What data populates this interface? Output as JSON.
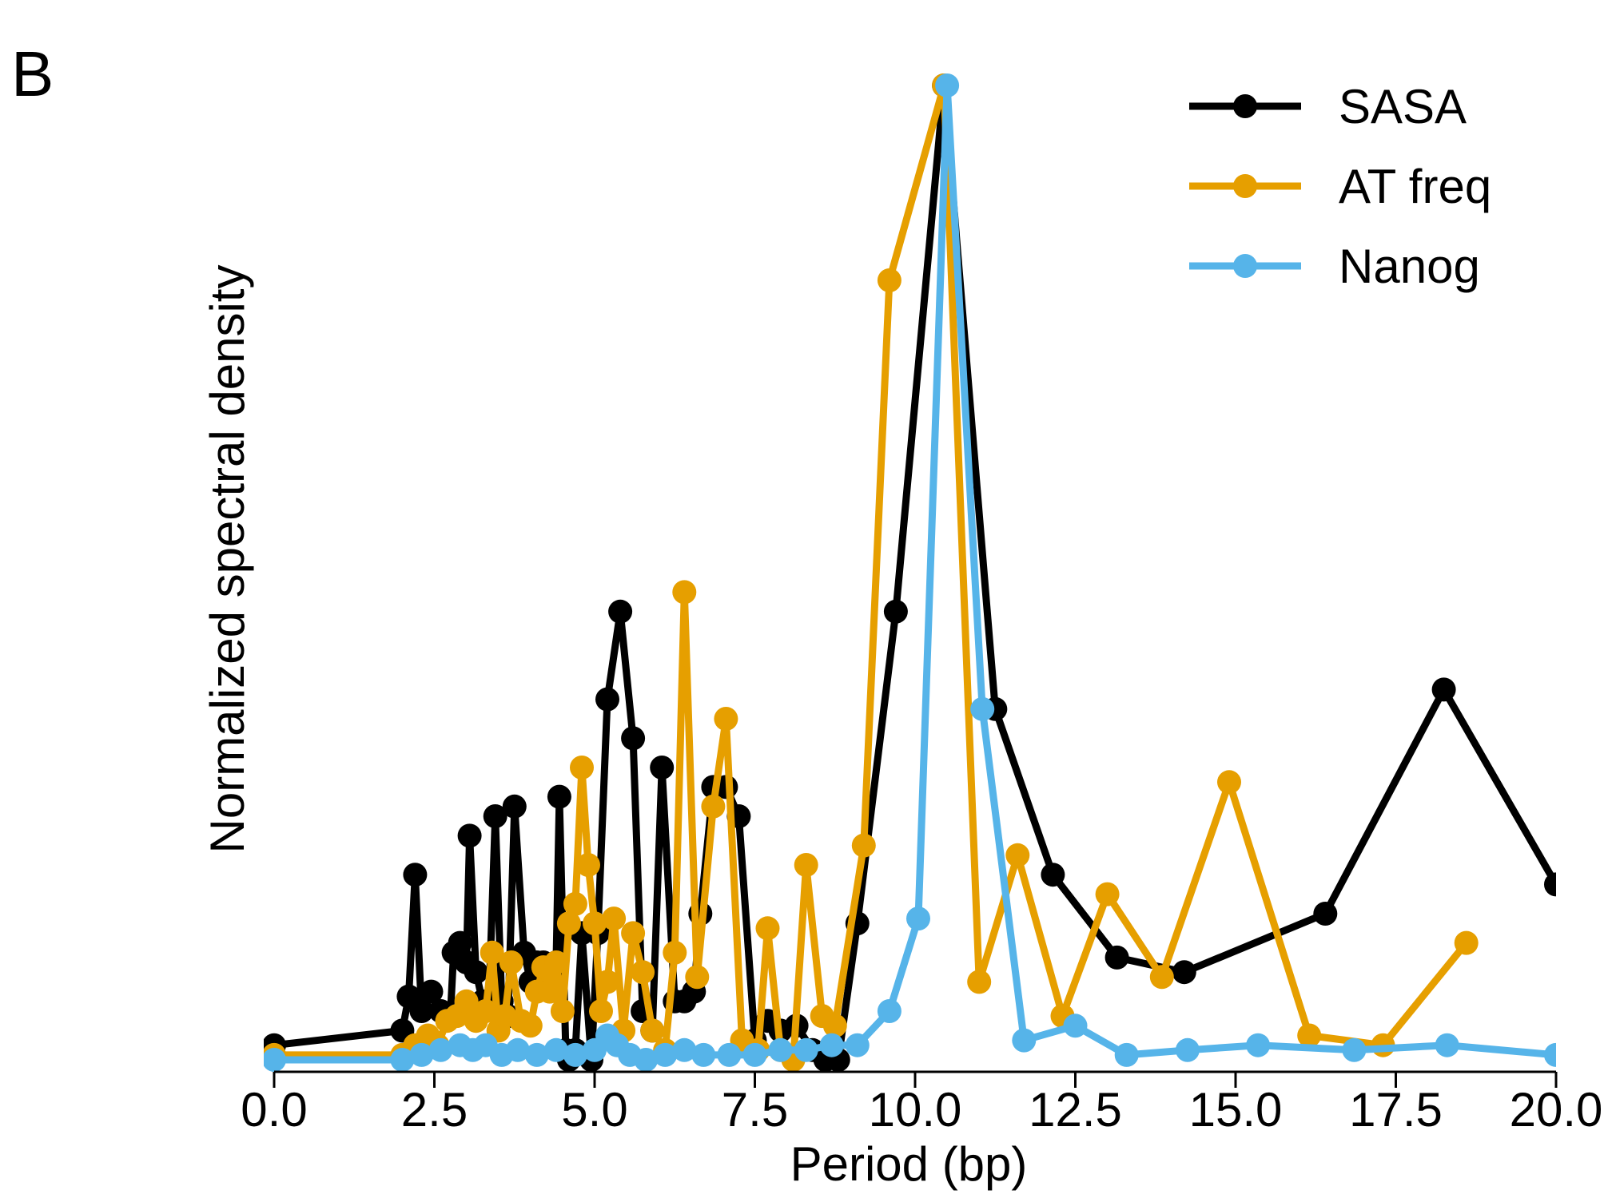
{
  "panel_label": "B",
  "chart_data": {
    "type": "line",
    "xlabel": "Period (bp)",
    "ylabel": "Normalized spectral density",
    "xlim": [
      0,
      20
    ],
    "ylim": [
      0,
      1
    ],
    "x_ticks": [
      "0.0",
      "2.5",
      "5.0",
      "7.5",
      "10.0",
      "12.5",
      "15.0",
      "17.5",
      "20.0"
    ],
    "y_ticks_shown": false,
    "grid": false,
    "legend_position": "top-right",
    "series": [
      {
        "name": "SASA",
        "color": "#000000",
        "points": [
          [
            0.0,
            0.015
          ],
          [
            2.0,
            0.03
          ],
          [
            2.1,
            0.065
          ],
          [
            2.2,
            0.19
          ],
          [
            2.3,
            0.05
          ],
          [
            2.45,
            0.07
          ],
          [
            2.6,
            0.05
          ],
          [
            2.75,
            0.045
          ],
          [
            2.8,
            0.11
          ],
          [
            2.9,
            0.12
          ],
          [
            3.0,
            0.1
          ],
          [
            3.05,
            0.23
          ],
          [
            3.15,
            0.09
          ],
          [
            3.25,
            0.06
          ],
          [
            3.35,
            0.06
          ],
          [
            3.45,
            0.25
          ],
          [
            3.55,
            0.06
          ],
          [
            3.65,
            0.045
          ],
          [
            3.75,
            0.26
          ],
          [
            3.9,
            0.11
          ],
          [
            4.0,
            0.08
          ],
          [
            4.1,
            0.1
          ],
          [
            4.2,
            0.1
          ],
          [
            4.3,
            0.08
          ],
          [
            4.4,
            0.1
          ],
          [
            4.45,
            0.27
          ],
          [
            4.55,
            0.01
          ],
          [
            4.6,
            0.0
          ],
          [
            4.7,
            0.01
          ],
          [
            4.8,
            0.13
          ],
          [
            4.95,
            0.0
          ],
          [
            5.05,
            0.13
          ],
          [
            5.2,
            0.37
          ],
          [
            5.4,
            0.46
          ],
          [
            5.6,
            0.33
          ],
          [
            5.75,
            0.05
          ],
          [
            5.9,
            0.03
          ],
          [
            6.05,
            0.3
          ],
          [
            6.25,
            0.06
          ],
          [
            6.4,
            0.06
          ],
          [
            6.55,
            0.07
          ],
          [
            6.65,
            0.15
          ],
          [
            6.85,
            0.28
          ],
          [
            7.05,
            0.28
          ],
          [
            7.25,
            0.25
          ],
          [
            7.5,
            0.02
          ],
          [
            7.7,
            0.04
          ],
          [
            7.9,
            0.03
          ],
          [
            8.15,
            0.035
          ],
          [
            8.4,
            0.01
          ],
          [
            8.6,
            0.0
          ],
          [
            8.8,
            0.0
          ],
          [
            9.1,
            0.14
          ],
          [
            9.7,
            0.46
          ],
          [
            10.45,
            1.0
          ],
          [
            11.25,
            0.36
          ],
          [
            12.15,
            0.19
          ],
          [
            13.15,
            0.105
          ],
          [
            14.2,
            0.09
          ],
          [
            16.4,
            0.15
          ],
          [
            18.25,
            0.38
          ],
          [
            20.0,
            0.18
          ]
        ]
      },
      {
        "name": "AT freq",
        "color": "#E69F00",
        "points": [
          [
            0.0,
            0.005
          ],
          [
            2.0,
            0.005
          ],
          [
            2.2,
            0.015
          ],
          [
            2.4,
            0.025
          ],
          [
            2.55,
            0.015
          ],
          [
            2.7,
            0.04
          ],
          [
            2.85,
            0.045
          ],
          [
            3.0,
            0.06
          ],
          [
            3.15,
            0.04
          ],
          [
            3.3,
            0.05
          ],
          [
            3.4,
            0.11
          ],
          [
            3.5,
            0.03
          ],
          [
            3.6,
            0.045
          ],
          [
            3.7,
            0.1
          ],
          [
            3.85,
            0.04
          ],
          [
            4.0,
            0.035
          ],
          [
            4.1,
            0.07
          ],
          [
            4.2,
            0.095
          ],
          [
            4.3,
            0.07
          ],
          [
            4.4,
            0.1
          ],
          [
            4.5,
            0.05
          ],
          [
            4.6,
            0.14
          ],
          [
            4.7,
            0.16
          ],
          [
            4.8,
            0.3
          ],
          [
            4.9,
            0.2
          ],
          [
            5.0,
            0.14
          ],
          [
            5.1,
            0.05
          ],
          [
            5.2,
            0.08
          ],
          [
            5.3,
            0.145
          ],
          [
            5.45,
            0.03
          ],
          [
            5.6,
            0.13
          ],
          [
            5.75,
            0.09
          ],
          [
            5.9,
            0.03
          ],
          [
            6.1,
            0.01
          ],
          [
            6.25,
            0.11
          ],
          [
            6.4,
            0.48
          ],
          [
            6.6,
            0.085
          ],
          [
            6.85,
            0.26
          ],
          [
            7.05,
            0.35
          ],
          [
            7.3,
            0.02
          ],
          [
            7.55,
            0.01
          ],
          [
            7.7,
            0.135
          ],
          [
            7.9,
            0.01
          ],
          [
            8.1,
            0.0
          ],
          [
            8.3,
            0.2
          ],
          [
            8.55,
            0.045
          ],
          [
            8.75,
            0.035
          ],
          [
            9.2,
            0.22
          ],
          [
            9.6,
            0.8
          ],
          [
            10.45,
            1.0
          ],
          [
            11.0,
            0.08
          ],
          [
            11.6,
            0.21
          ],
          [
            12.3,
            0.045
          ],
          [
            13.0,
            0.17
          ],
          [
            13.85,
            0.085
          ],
          [
            14.9,
            0.285
          ],
          [
            16.15,
            0.025
          ],
          [
            17.3,
            0.015
          ],
          [
            18.6,
            0.12
          ]
        ]
      },
      {
        "name": "Nanog",
        "color": "#56B4E9",
        "points": [
          [
            0.0,
            0.0
          ],
          [
            2.0,
            0.0
          ],
          [
            2.3,
            0.005
          ],
          [
            2.6,
            0.01
          ],
          [
            2.9,
            0.015
          ],
          [
            3.1,
            0.01
          ],
          [
            3.3,
            0.015
          ],
          [
            3.55,
            0.005
          ],
          [
            3.8,
            0.01
          ],
          [
            4.1,
            0.005
          ],
          [
            4.4,
            0.01
          ],
          [
            4.7,
            0.005
          ],
          [
            5.0,
            0.01
          ],
          [
            5.2,
            0.025
          ],
          [
            5.35,
            0.015
          ],
          [
            5.55,
            0.005
          ],
          [
            5.8,
            0.0
          ],
          [
            6.1,
            0.005
          ],
          [
            6.4,
            0.01
          ],
          [
            6.7,
            0.005
          ],
          [
            7.1,
            0.005
          ],
          [
            7.5,
            0.005
          ],
          [
            7.9,
            0.01
          ],
          [
            8.3,
            0.01
          ],
          [
            8.7,
            0.015
          ],
          [
            9.1,
            0.015
          ],
          [
            9.6,
            0.05
          ],
          [
            10.05,
            0.145
          ],
          [
            10.5,
            1.0
          ],
          [
            11.05,
            0.36
          ],
          [
            11.7,
            0.02
          ],
          [
            12.5,
            0.035
          ],
          [
            13.3,
            0.005
          ],
          [
            14.25,
            0.01
          ],
          [
            15.35,
            0.015
          ],
          [
            16.85,
            0.01
          ],
          [
            18.3,
            0.015
          ],
          [
            20.0,
            0.005
          ]
        ]
      }
    ]
  }
}
